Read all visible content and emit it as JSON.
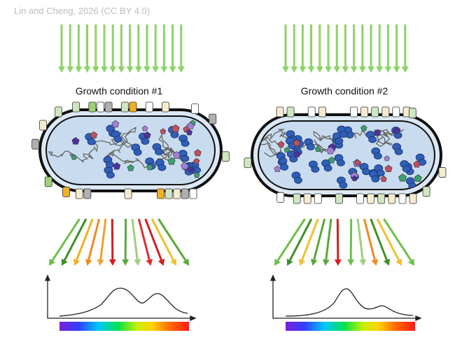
{
  "credit": "Lin and Cheng, 2026 (CC BY 4.0)",
  "panels": [
    {
      "title": "Growth condition #1"
    },
    {
      "title": "Growth condition #2"
    }
  ]
}
